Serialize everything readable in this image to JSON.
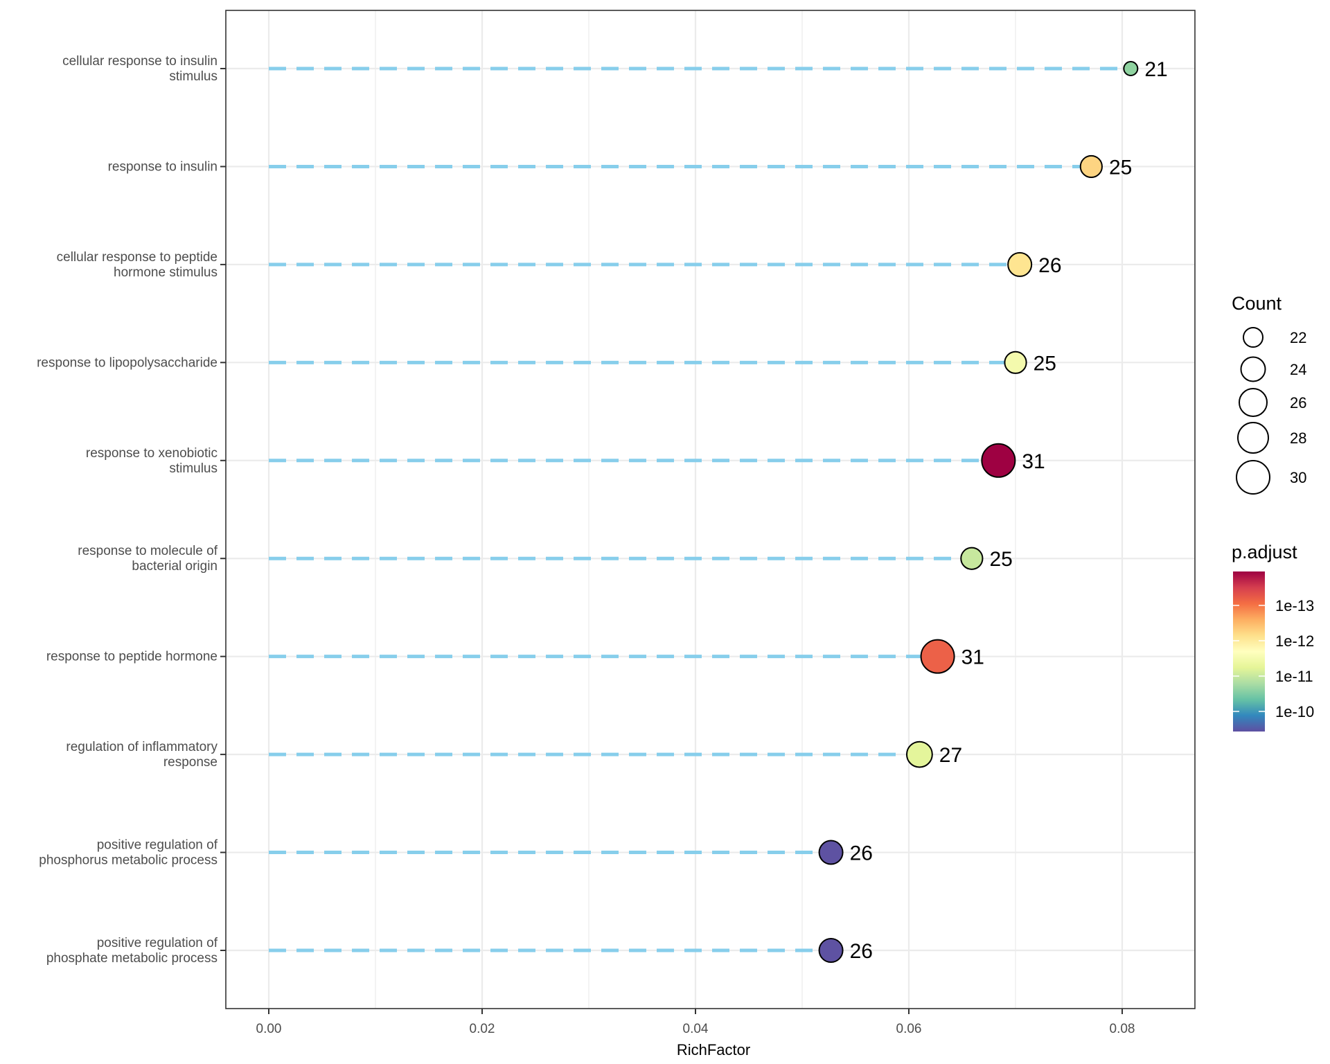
{
  "chart_data": {
    "type": "scatter",
    "subtype": "lollipop",
    "title": "",
    "xlabel": "RichFactor",
    "ylabel": "",
    "xlim": [
      -0.004,
      0.087
    ],
    "x_ticks": [
      0.0,
      0.02,
      0.04,
      0.06,
      0.08
    ],
    "x_tick_labels": [
      "0.00",
      "0.02",
      "0.04",
      "0.06",
      "0.08"
    ],
    "grid": true,
    "segment_color": "#87CEEB",
    "segment_style": "dashed",
    "categories": [
      "cellular response to insulin\nstimulus",
      "response to insulin",
      "cellular response to peptide\nhormone stimulus",
      "response to lipopolysaccharide",
      "response to xenobiotic\nstimulus",
      "response to molecule of\nbacterial origin",
      "response to peptide hormone",
      "regulation of inflammatory\nresponse",
      "positive regulation of\nphosphorus metabolic process",
      "positive regulation of\nphosphate metabolic process"
    ],
    "points": [
      {
        "term": "cellular response to insulin stimulus",
        "RichFactor": 0.0808,
        "Count": 21,
        "p_adjust": 3e-11,
        "color": "#8fd3a0"
      },
      {
        "term": "response to insulin",
        "RichFactor": 0.0771,
        "Count": 25,
        "p_adjust": 5e-13,
        "color": "#fdd482"
      },
      {
        "term": "cellular response to peptide hormone stimulus",
        "RichFactor": 0.0704,
        "Count": 26,
        "p_adjust": 8e-13,
        "color": "#fee591"
      },
      {
        "term": "response to lipopolysaccharide",
        "RichFactor": 0.07,
        "Count": 25,
        "p_adjust": 3e-12,
        "color": "#f4faad"
      },
      {
        "term": "response to xenobiotic stimulus",
        "RichFactor": 0.0684,
        "Count": 31,
        "p_adjust": 1e-14,
        "color": "#9e0142"
      },
      {
        "term": "response to molecule of bacterial origin",
        "RichFactor": 0.0659,
        "Count": 25,
        "p_adjust": 1.5e-11,
        "color": "#c7e89e"
      },
      {
        "term": "response to peptide hormone",
        "RichFactor": 0.0627,
        "Count": 31,
        "p_adjust": 1e-13,
        "color": "#ec6148"
      },
      {
        "term": "regulation of inflammatory response",
        "RichFactor": 0.061,
        "Count": 27,
        "p_adjust": 5e-12,
        "color": "#e4f59b"
      },
      {
        "term": "positive regulation of phosphorus metabolic process",
        "RichFactor": 0.0527,
        "Count": 26,
        "p_adjust": 2e-10,
        "color": "#5e52a2"
      },
      {
        "term": "positive regulation of phosphate metabolic process",
        "RichFactor": 0.0527,
        "Count": 26,
        "p_adjust": 2e-10,
        "color": "#5e52a2"
      }
    ],
    "legend": {
      "size": {
        "title": "Count",
        "values": [
          22,
          24,
          26,
          28,
          30
        ],
        "labels": [
          "22",
          "24",
          "26",
          "28",
          "30"
        ],
        "placement": "right"
      },
      "color": {
        "title": "p.adjust",
        "scale": "log",
        "palette": "Spectral",
        "stops": [
          "#9e0142",
          "#d53e4f",
          "#f46d43",
          "#fdae61",
          "#fee08b",
          "#ffffbf",
          "#e6f598",
          "#abdda4",
          "#66c2a5",
          "#3288bd",
          "#5e4fa2"
        ],
        "ticks": [
          "1e-13",
          "1e-12",
          "1e-11",
          "1e-10"
        ],
        "placement": "right"
      }
    }
  }
}
